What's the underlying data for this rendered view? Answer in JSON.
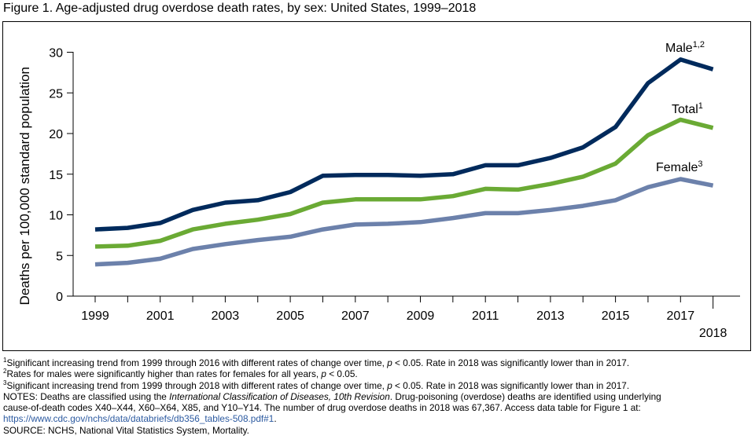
{
  "title": "Figure 1. Age-adjusted drug overdose death rates, by sex: United States, 1999–2018",
  "chart_data": {
    "type": "line",
    "title": "Figure 1. Age-adjusted drug overdose death rates, by sex: United States, 1999–2018",
    "ylabel": "Deaths per 100,000 standard population",
    "xlabel": "",
    "x": [
      1999,
      2000,
      2001,
      2002,
      2003,
      2004,
      2005,
      2006,
      2007,
      2008,
      2009,
      2010,
      2011,
      2012,
      2013,
      2014,
      2015,
      2016,
      2017,
      2018
    ],
    "x_tick_labels": [
      "1999",
      "2001",
      "2003",
      "2005",
      "2007",
      "2009",
      "2011",
      "2013",
      "2015",
      "2017"
    ],
    "x_tick_label_extra": "2018",
    "ylim": [
      0,
      30
    ],
    "y_ticks": [
      0,
      5,
      10,
      15,
      20,
      25,
      30
    ],
    "y_tick_labels": [
      "0",
      "5",
      "10",
      "15",
      "20",
      "25",
      "30"
    ],
    "grid": false,
    "legend": "inline labels near line ends",
    "series": [
      {
        "name": "Male",
        "sup": "1,2",
        "color": "#002a5c",
        "values": [
          8.2,
          8.4,
          9.0,
          10.6,
          11.5,
          11.8,
          12.8,
          14.8,
          14.9,
          14.9,
          14.8,
          15.0,
          16.1,
          16.1,
          17.0,
          18.3,
          20.8,
          26.2,
          29.1,
          27.9
        ]
      },
      {
        "name": "Total",
        "sup": "1",
        "color": "#6aaa34",
        "values": [
          6.1,
          6.2,
          6.8,
          8.2,
          8.9,
          9.4,
          10.1,
          11.5,
          11.9,
          11.9,
          11.9,
          12.3,
          13.2,
          13.1,
          13.8,
          14.7,
          16.3,
          19.8,
          21.7,
          20.7
        ]
      },
      {
        "name": "Female",
        "sup": "3",
        "color": "#6c81ab",
        "values": [
          3.9,
          4.1,
          4.6,
          5.8,
          6.4,
          6.9,
          7.3,
          8.2,
          8.8,
          8.9,
          9.1,
          9.6,
          10.2,
          10.2,
          10.6,
          11.1,
          11.8,
          13.4,
          14.4,
          13.6
        ]
      }
    ]
  },
  "notes": {
    "n1_sup": "1",
    "n1_pre": "Significant increasing trend from 1999 through 2016 with different rates of change over time, ",
    "n1_p": "p",
    "n1_post": " < 0.05. Rate in 2018 was significantly lower than in 2017.",
    "n2_sup": "2",
    "n2_pre": "Rates for males were significantly higher than rates for females for all years, ",
    "n2_p": "p",
    "n2_post": " < 0.05.",
    "n3_sup": "3",
    "n3_pre": "Significant increasing trend from 1999 through 2018 with different rates of change over time, ",
    "n3_p": "p",
    "n3_post": " < 0.05. Rate in 2018 was significantly lower than in 2017.",
    "notes_pre": "NOTES: Deaths are classified using the ",
    "notes_italic": "International Classification of Diseases, 10th Revision",
    "notes_post": ". Drug-poisoning (overdose) deaths are identified using underlying",
    "notes_line2": "cause-of-death codes X40–X44, X60–X64, X85, and Y10–Y14. The number of drug overdose deaths in 2018 was 67,367. Access data table for Figure 1 at:",
    "notes_link": "https://www.cdc.gov/nchs/data/databriefs/db356_tables-508.pdf#1",
    "notes_link_end": ".",
    "source": "SOURCE: NCHS, National Vital Statistics System, Mortality."
  }
}
